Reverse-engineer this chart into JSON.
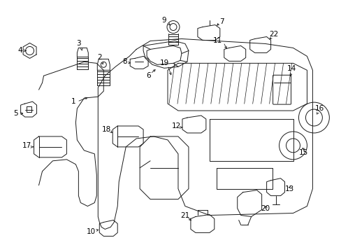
{
  "background_color": "#ffffff",
  "fig_width": 4.89,
  "fig_height": 3.6,
  "dpi": 100,
  "line_color": "#1a1a1a",
  "lw": 0.7
}
